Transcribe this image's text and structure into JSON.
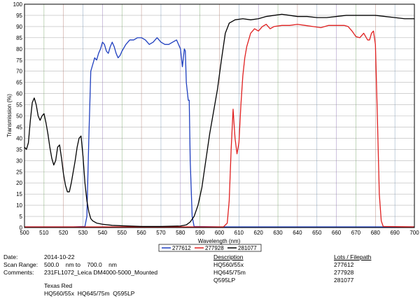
{
  "chart_data": {
    "type": "line",
    "xlabel": "Wavelength (nm)",
    "ylabel": "Transmission (%)",
    "xlim": [
      500,
      700
    ],
    "ylim": [
      0,
      100
    ],
    "xticks": [
      500,
      510,
      520,
      530,
      540,
      550,
      560,
      570,
      580,
      590,
      600,
      610,
      620,
      630,
      640,
      650,
      660,
      670,
      680,
      690,
      700
    ],
    "yticks": [
      0,
      5,
      10,
      15,
      20,
      25,
      30,
      35,
      40,
      45,
      50,
      55,
      60,
      65,
      70,
      75,
      80,
      85,
      90,
      95,
      100
    ],
    "grid": true,
    "legend_position": "bottom",
    "series": [
      {
        "name": "277612",
        "color": "#1f3fbf",
        "points": [
          [
            500,
            0.3
          ],
          [
            525,
            0.3
          ],
          [
            531,
            0.5
          ],
          [
            532,
            5
          ],
          [
            533,
            40
          ],
          [
            534,
            70
          ],
          [
            535,
            73
          ],
          [
            536,
            76
          ],
          [
            537,
            75
          ],
          [
            538,
            78
          ],
          [
            539,
            80
          ],
          [
            540,
            83
          ],
          [
            541,
            82
          ],
          [
            542,
            79
          ],
          [
            543,
            78
          ],
          [
            544,
            81
          ],
          [
            545,
            83
          ],
          [
            546,
            81
          ],
          [
            547,
            78
          ],
          [
            548,
            76
          ],
          [
            549,
            77
          ],
          [
            550,
            79
          ],
          [
            552,
            82
          ],
          [
            554,
            84
          ],
          [
            556,
            84
          ],
          [
            558,
            85
          ],
          [
            560,
            85
          ],
          [
            562,
            84
          ],
          [
            564,
            82
          ],
          [
            566,
            83
          ],
          [
            568,
            85
          ],
          [
            570,
            83
          ],
          [
            572,
            82
          ],
          [
            574,
            82
          ],
          [
            576,
            83
          ],
          [
            578,
            84
          ],
          [
            580,
            80
          ],
          [
            581,
            72
          ],
          [
            582,
            80
          ],
          [
            582.5,
            79
          ],
          [
            583,
            65
          ],
          [
            584,
            57
          ],
          [
            584.5,
            57
          ],
          [
            585,
            30
          ],
          [
            586,
            5
          ],
          [
            587,
            0.5
          ],
          [
            600,
            0.3
          ],
          [
            700,
            0.3
          ]
        ]
      },
      {
        "name": "277928",
        "color": "#e02020",
        "points": [
          [
            500,
            0.3
          ],
          [
            602,
            0.3
          ],
          [
            604,
            2
          ],
          [
            605,
            12
          ],
          [
            606,
            35
          ],
          [
            607,
            53
          ],
          [
            608,
            40
          ],
          [
            609,
            33
          ],
          [
            610,
            38
          ],
          [
            611,
            55
          ],
          [
            612,
            68
          ],
          [
            613,
            76
          ],
          [
            614,
            81
          ],
          [
            615,
            84
          ],
          [
            616,
            87
          ],
          [
            618,
            89
          ],
          [
            620,
            88
          ],
          [
            622,
            90
          ],
          [
            624,
            91
          ],
          [
            626,
            89
          ],
          [
            628,
            90
          ],
          [
            632,
            90.5
          ],
          [
            636,
            90.5
          ],
          [
            640,
            91
          ],
          [
            644,
            90.5
          ],
          [
            648,
            90
          ],
          [
            652,
            89.5
          ],
          [
            656,
            90.5
          ],
          [
            660,
            90.5
          ],
          [
            664,
            90.5
          ],
          [
            666,
            90
          ],
          [
            668,
            88
          ],
          [
            670,
            85.5
          ],
          [
            672,
            85
          ],
          [
            674,
            87
          ],
          [
            676,
            84
          ],
          [
            677,
            84
          ],
          [
            678,
            87
          ],
          [
            679,
            88
          ],
          [
            680,
            82
          ],
          [
            681,
            50
          ],
          [
            682,
            15
          ],
          [
            683,
            3
          ],
          [
            684,
            0.5
          ],
          [
            700,
            0.3
          ]
        ]
      },
      {
        "name": "281077",
        "color": "#000000",
        "points": [
          [
            500,
            36
          ],
          [
            501,
            35
          ],
          [
            502,
            38
          ],
          [
            503,
            48
          ],
          [
            504,
            56
          ],
          [
            505,
            58
          ],
          [
            506,
            55
          ],
          [
            507,
            50
          ],
          [
            508,
            48
          ],
          [
            509,
            50
          ],
          [
            510,
            51
          ],
          [
            511,
            47
          ],
          [
            512,
            42
          ],
          [
            513,
            36
          ],
          [
            514,
            31
          ],
          [
            515,
            28
          ],
          [
            516,
            30
          ],
          [
            517,
            36
          ],
          [
            518,
            37
          ],
          [
            519,
            31
          ],
          [
            520,
            24
          ],
          [
            521,
            19
          ],
          [
            522,
            16
          ],
          [
            523,
            16
          ],
          [
            524,
            20
          ],
          [
            525,
            25
          ],
          [
            526,
            30
          ],
          [
            527,
            36
          ],
          [
            528,
            40
          ],
          [
            529,
            41
          ],
          [
            530,
            32
          ],
          [
            531,
            20
          ],
          [
            532,
            12
          ],
          [
            533,
            7
          ],
          [
            534,
            4
          ],
          [
            535,
            3
          ],
          [
            537,
            2
          ],
          [
            540,
            1.5
          ],
          [
            545,
            1
          ],
          [
            550,
            0.8
          ],
          [
            560,
            0.5
          ],
          [
            570,
            0.5
          ],
          [
            580,
            0.7
          ],
          [
            583,
            1.2
          ],
          [
            585,
            2.5
          ],
          [
            587,
            5
          ],
          [
            589,
            10
          ],
          [
            591,
            18
          ],
          [
            593,
            30
          ],
          [
            595,
            42
          ],
          [
            597,
            52
          ],
          [
            599,
            62
          ],
          [
            601,
            75
          ],
          [
            603,
            87
          ],
          [
            605,
            91.5
          ],
          [
            608,
            93
          ],
          [
            612,
            93.5
          ],
          [
            616,
            93
          ],
          [
            620,
            93.5
          ],
          [
            624,
            94.5
          ],
          [
            628,
            95
          ],
          [
            632,
            95.5
          ],
          [
            636,
            95
          ],
          [
            640,
            94.5
          ],
          [
            645,
            94.5
          ],
          [
            650,
            94
          ],
          [
            655,
            94
          ],
          [
            660,
            94.5
          ],
          [
            665,
            95
          ],
          [
            670,
            95
          ],
          [
            675,
            95
          ],
          [
            680,
            95
          ],
          [
            685,
            94.5
          ],
          [
            690,
            94
          ],
          [
            695,
            93.5
          ],
          [
            700,
            93.5
          ]
        ]
      }
    ]
  },
  "info": {
    "date_label": "Date:",
    "date_value": "2014-10-22",
    "scan_label": "Scan Range:",
    "scan_value": "500.0    nm to    700.0    nm",
    "comments_label": "Comments:",
    "comments_value": "231FL1072_Leica DM4000-5000_Mounted",
    "comments_line2": "Texas Red",
    "comments_line3": "HQ560/55x  HQ645/75m  Q595LP",
    "description_header": "Description",
    "descriptions": [
      "HQ560/55x",
      "HQ645/75m",
      "Q595LP"
    ],
    "lots_header": "Lots / Filepath",
    "lots": [
      "277612",
      "277928",
      "281077"
    ]
  }
}
